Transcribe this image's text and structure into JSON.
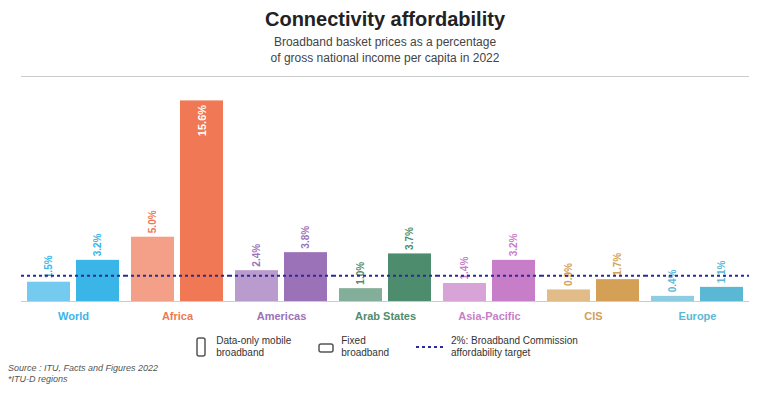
{
  "chart_data": {
    "type": "bar",
    "title": "Connectivity affordability",
    "subtitle": "Broadband basket prices as a percentage\nof gross national income per capita in 2022",
    "categories": [
      "World",
      "Africa",
      "Americas",
      "Arab States",
      "Asia-Pacific",
      "CIS",
      "Europe"
    ],
    "colors": [
      "#3ab5e8",
      "#f07855",
      "#9b72b8",
      "#4e8c6e",
      "#c87dc8",
      "#d4a055",
      "#5bb8d4"
    ],
    "series": [
      {
        "name": "Data-only mobile\nbroadband",
        "values": [
          1.5,
          5.0,
          2.4,
          1.0,
          1.4,
          0.9,
          0.4
        ],
        "value_labels": [
          "1.5%",
          "5.0%",
          "2.4%",
          "1.0%",
          "1.4%",
          "0.9%",
          "0.4%"
        ]
      },
      {
        "name": "Fixed\nbroadband",
        "values": [
          3.2,
          15.6,
          3.8,
          3.7,
          3.2,
          1.7,
          1.1
        ],
        "value_labels": [
          "3.2%",
          "15.6%",
          "3.8%",
          "3.7%",
          "3.2%",
          "1.7%",
          "1.1%"
        ]
      }
    ],
    "lines": [
      {
        "name": "2%: Broadband Commission\naffordability target",
        "value": 2.0,
        "color": "#2a2a99",
        "line_style": "dotted"
      }
    ],
    "ylim": [
      0,
      17.5
    ],
    "data_labels": true,
    "tick_labels": "x",
    "grid": false,
    "legend": "bottom",
    "source": "Source : ITU, Facts and Figures 2022\n*ITU-D regions"
  }
}
